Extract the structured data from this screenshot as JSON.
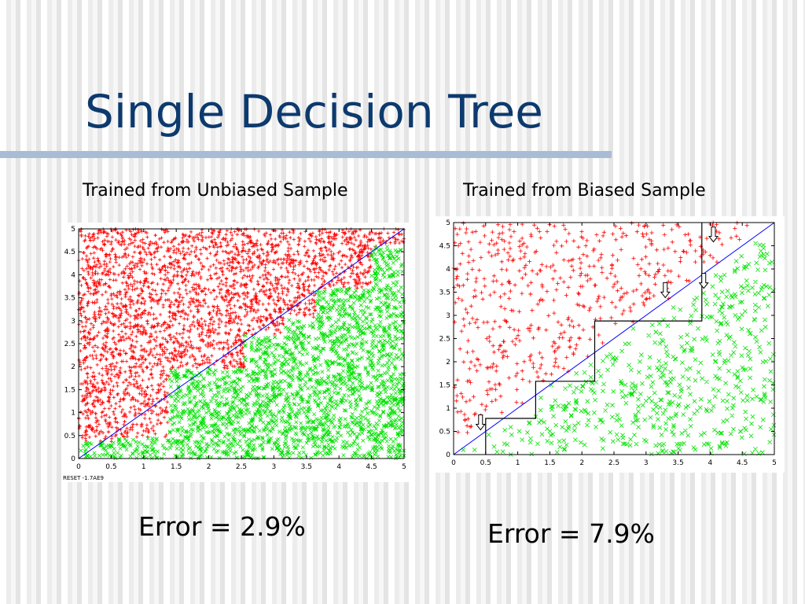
{
  "slide": {
    "title": "Single Decision Tree",
    "left_caption": "Trained from Unbiased Sample",
    "right_caption": "Trained from Biased Sample",
    "left_error": "Error = 2.9%",
    "right_error": "Error = 7.9%",
    "title_color": "#0d3a6e",
    "rule_color": "#a9bcd6"
  },
  "chart_data": [
    {
      "type": "scatter",
      "title": "",
      "xlabel": "",
      "ylabel": "",
      "xlim": [
        0,
        5
      ],
      "ylim": [
        0,
        5
      ],
      "xticks": [
        "0",
        "0.5",
        "1",
        "1.5",
        "2",
        "2.5",
        "3",
        "3.5",
        "4",
        "4.5",
        "5"
      ],
      "yticks": [
        "0",
        "0.5",
        "1",
        "1.5",
        "2",
        "2.5",
        "3",
        "3.5",
        "4",
        "4.5",
        "5"
      ],
      "grid": false,
      "series": [
        {
          "class": "above",
          "marker": "+",
          "color": "#ff0000",
          "density": "dense"
        },
        {
          "class": "below",
          "marker": "x",
          "color": "#00e000",
          "density": "dense"
        }
      ],
      "true_boundary": {
        "points": [
          [
            0,
            0
          ],
          [
            5,
            5
          ]
        ],
        "color": "#0000ff"
      },
      "tree_boundary": [
        [
          0,
          0.37
        ],
        [
          0.55,
          0.37
        ],
        [
          0.55,
          0.45
        ],
        [
          1.4,
          0.45
        ],
        [
          1.4,
          1.95
        ],
        [
          2.55,
          1.95
        ],
        [
          2.55,
          2.7
        ],
        [
          3.15,
          2.7
        ],
        [
          3.15,
          3.05
        ],
        [
          3.65,
          3.05
        ],
        [
          3.65,
          3.7
        ],
        [
          4.5,
          3.7
        ],
        [
          4.5,
          4.62
        ],
        [
          5,
          4.62
        ]
      ],
      "footer_text": "RESET  -1.7AE9"
    },
    {
      "type": "scatter",
      "title": "",
      "xlabel": "",
      "ylabel": "",
      "xlim": [
        0,
        5
      ],
      "ylim": [
        0,
        5
      ],
      "xticks": [
        "0",
        "0.5",
        "1",
        "1.5",
        "2",
        "2.5",
        "3",
        "3.5",
        "4",
        "4.5",
        "5"
      ],
      "yticks": [
        "0",
        "0.5",
        "1",
        "1.5",
        "2",
        "2.5",
        "3",
        "3.5",
        "4",
        "4.5",
        "5"
      ],
      "grid": false,
      "series": [
        {
          "class": "above",
          "marker": "+",
          "color": "#ff0000",
          "density": "sparse"
        },
        {
          "class": "below",
          "marker": "x",
          "color": "#00e000",
          "density": "sparse"
        }
      ],
      "true_boundary": {
        "points": [
          [
            0,
            0
          ],
          [
            5,
            5
          ]
        ],
        "color": "#0000ff"
      },
      "tree_boundary": [
        [
          0.5,
          0
        ],
        [
          0.5,
          0.78
        ],
        [
          1.28,
          0.78
        ],
        [
          1.28,
          1.58
        ],
        [
          2.2,
          1.58
        ],
        [
          2.2,
          2.88
        ],
        [
          3.87,
          2.88
        ],
        [
          3.87,
          5
        ]
      ],
      "arrows": [
        [
          0.42,
          0.55
        ],
        [
          3.3,
          3.4
        ],
        [
          3.9,
          3.6
        ],
        [
          4.05,
          4.6
        ]
      ]
    }
  ]
}
